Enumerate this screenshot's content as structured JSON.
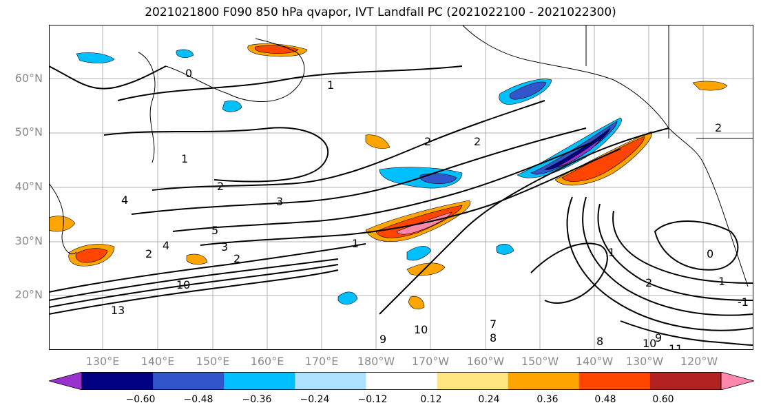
{
  "title": "2021021800 F090 850 hPa qvapor, IVT Landfall PC (2021022100 - 2021022300)",
  "map": {
    "lat_ticks": [
      "60°N",
      "50°N",
      "40°N",
      "30°N",
      "20°N"
    ],
    "lon_ticks": [
      "130°E",
      "140°E",
      "150°E",
      "160°E",
      "170°E",
      "180°W",
      "170°W",
      "160°W",
      "150°W",
      "140°W",
      "130°W",
      "120°W"
    ],
    "contour_labels": [
      "0",
      "1",
      "1",
      "2",
      "2",
      "2",
      "3",
      "4",
      "5",
      "2",
      "3",
      "4",
      "10",
      "13",
      "2",
      "1",
      "2",
      "0",
      "1",
      "-1",
      "2",
      "8",
      "9",
      "10",
      "11",
      "7",
      "8",
      "9",
      "10",
      "1"
    ]
  },
  "colorbar": {
    "tick_labels": [
      "−0.60",
      "−0.48",
      "−0.36",
      "−0.24",
      "−0.12",
      "0.12",
      "0.24",
      "0.36",
      "0.48",
      "0.60"
    ],
    "colors": [
      "#9932cc",
      "#000080",
      "#3355cc",
      "#00bfff",
      "#aee0ff",
      "#ffffff",
      "#ffe680",
      "#ffa500",
      "#ff4500",
      "#b22222",
      "#ff88aa"
    ]
  }
}
